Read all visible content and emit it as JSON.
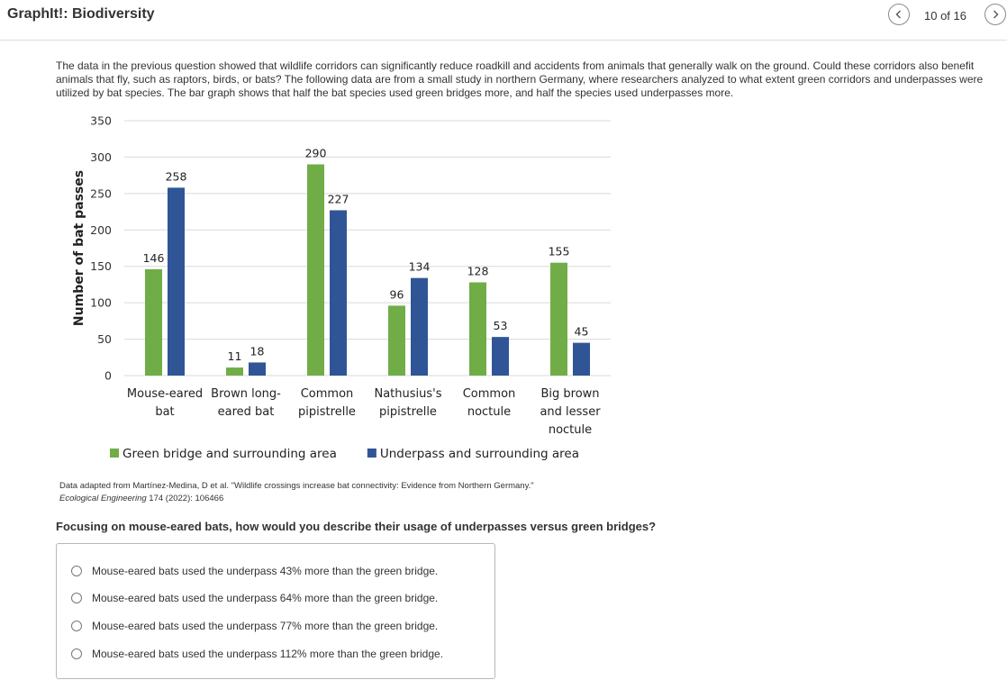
{
  "app": {
    "title": "GraphIt!: Biodiversity",
    "page_counter": "10 of 16",
    "prev_icon": "chevron-left-icon",
    "next_icon": "chevron-right-icon"
  },
  "intro": {
    "text": "The data in the previous question showed that wildlife corridors can significantly reduce roadkill and accidents from animals that generally walk on the ground. Could these corridors also benefit animals that fly, such as raptors, birds, or bats? The following data are from a small study in northern Germany, where researchers analyzed to what extent green corridors and underpasses were utilized by bat species. The bar graph shows that half the bat species used green bridges more, and half the species used underpasses more."
  },
  "chart_data": {
    "type": "bar",
    "title": "",
    "xlabel": "",
    "ylabel": "Number of bat passes",
    "ylim": [
      0,
      350
    ],
    "yticks": [
      0,
      50,
      100,
      150,
      200,
      250,
      300,
      350
    ],
    "grid": true,
    "legend_position": "bottom",
    "categories": [
      [
        "Mouse-eared",
        "bat"
      ],
      [
        "Brown long-",
        "eared bat"
      ],
      [
        "Common",
        "pipistrelle"
      ],
      [
        "Nathusius's",
        "pipistrelle"
      ],
      [
        "Common",
        "noctule"
      ],
      [
        "Big brown",
        "and lesser",
        "noctule"
      ]
    ],
    "series": [
      {
        "name": "Green bridge and surrounding area",
        "color": "#70ad47",
        "values": [
          146,
          11,
          290,
          96,
          128,
          155
        ]
      },
      {
        "name": "Underpass and surrounding area",
        "color": "#2f5597",
        "values": [
          258,
          18,
          227,
          134,
          53,
          45
        ]
      }
    ]
  },
  "citation": {
    "line1": "Data adapted from Martínez-Medina, D et al. \"Wildlife crossings increase bat connectivity: Evidence from Northern Germany.\"",
    "journal": "Ecological Engineering",
    "rest": " 174 (2022): 106466"
  },
  "question": {
    "text": "Focusing on mouse-eared bats, how would you describe their usage of underpasses versus green bridges?",
    "options": [
      "Mouse-eared bats used the underpass 43% more than the green bridge.",
      "Mouse-eared bats used the underpass 64% more than the green bridge.",
      "Mouse-eared bats used the underpass 77% more than the green bridge.",
      "Mouse-eared bats used the underpass 112% more than the green bridge."
    ]
  }
}
